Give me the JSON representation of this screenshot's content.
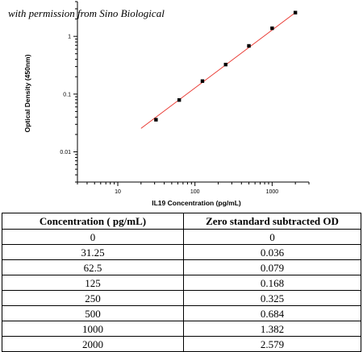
{
  "watermark": "with permission from Sino Biological",
  "chart_data": {
    "type": "scatter",
    "xlabel": "IL19 Concentration (pg/mL)",
    "ylabel": "Optical Density (450nm)",
    "x_scale": "log",
    "y_scale": "log",
    "xlim": [
      3,
      3000
    ],
    "ylim": [
      0.003,
      4
    ],
    "x_ticks": [
      10,
      100,
      1000
    ],
    "x_tick_labels": [
      "10",
      "100",
      "1000"
    ],
    "y_ticks": [
      0.01,
      0.1,
      1
    ],
    "y_tick_labels": [
      "0.01",
      "0.1",
      "1"
    ],
    "grid": false,
    "series": [
      {
        "x": [
          31.25,
          62.5,
          125,
          250,
          500,
          1000,
          2000
        ],
        "y": [
          0.036,
          0.079,
          0.168,
          0.325,
          0.684,
          1.382,
          2.579
        ],
        "marker_color": "#000000"
      }
    ],
    "fit_line": {
      "x": [
        20,
        2000
      ],
      "y": [
        0.0255,
        2.58
      ],
      "color": "#e8322b"
    }
  },
  "table": {
    "headers": [
      "Concentration ( pg/mL)",
      "Zero standard subtracted OD"
    ],
    "rows": [
      [
        "0",
        "0"
      ],
      [
        "31.25",
        "0.036"
      ],
      [
        "62.5",
        "0.079"
      ],
      [
        "125",
        "0.168"
      ],
      [
        "250",
        "0.325"
      ],
      [
        "500",
        "0.684"
      ],
      [
        "1000",
        "1.382"
      ],
      [
        "2000",
        "2.579"
      ]
    ]
  }
}
